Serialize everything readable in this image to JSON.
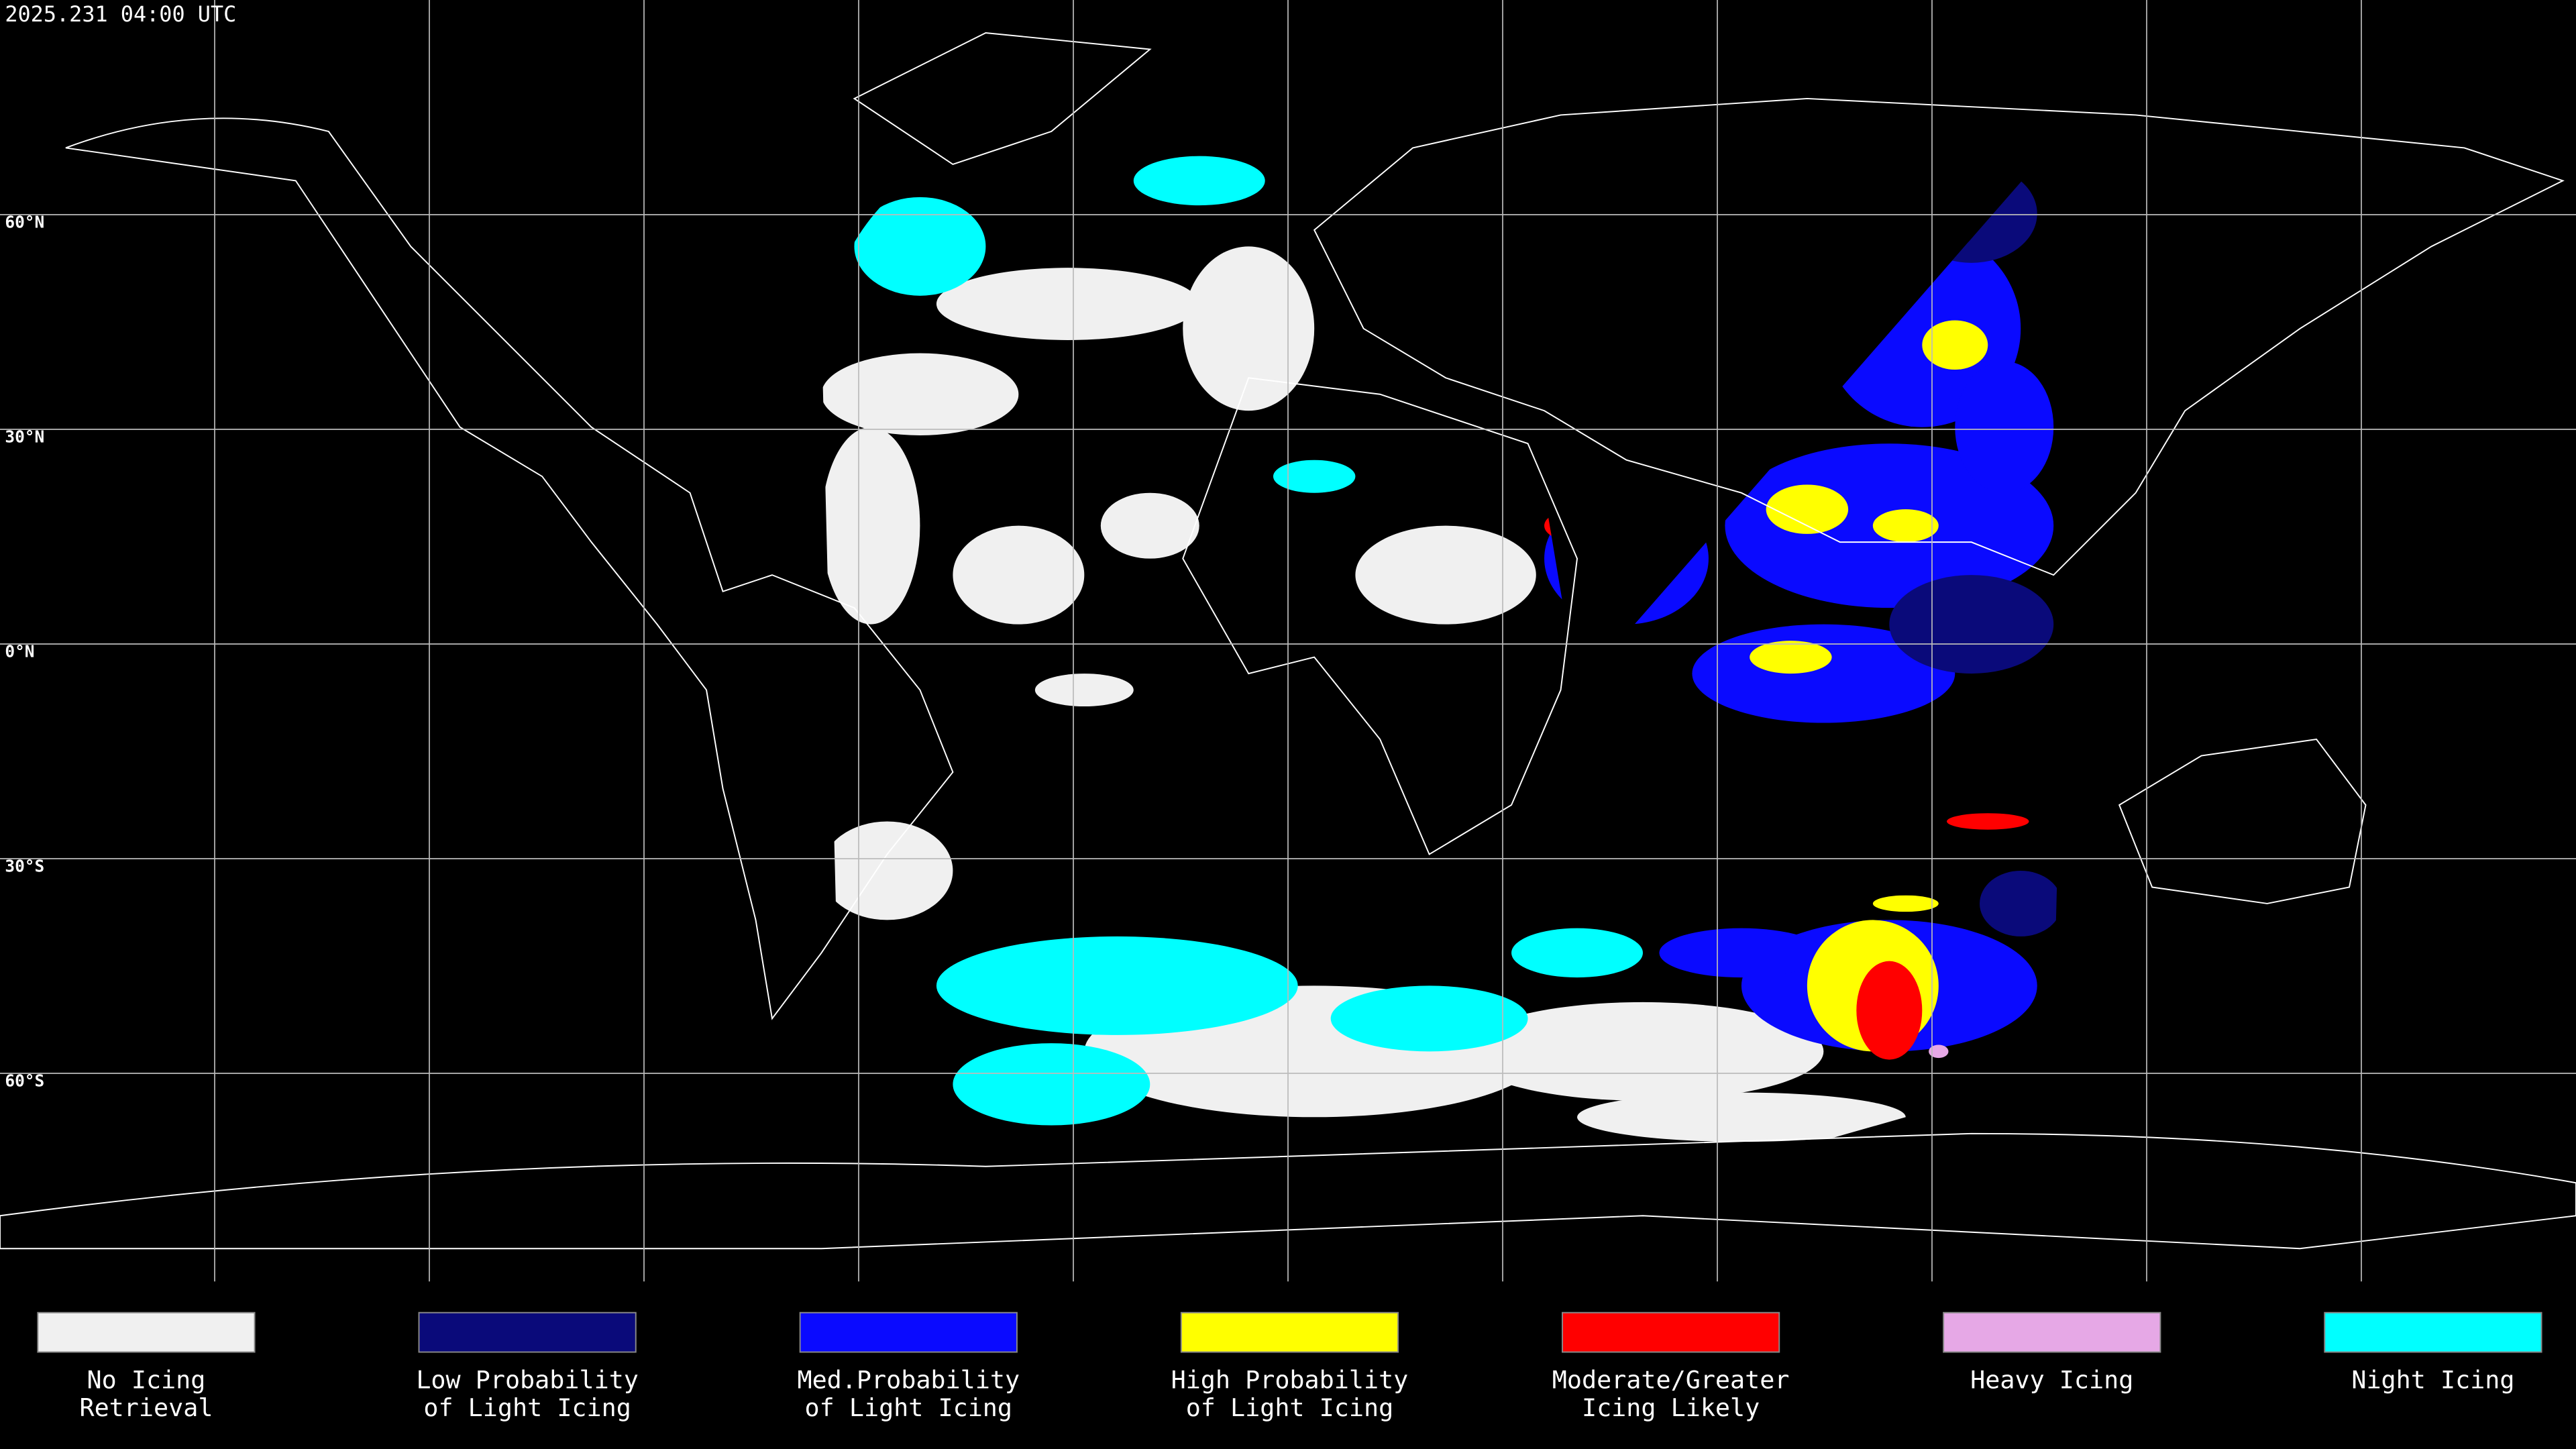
{
  "timestamp": "2025.231 04:00 UTC",
  "latitude_lines": [
    {
      "value": 60,
      "label": "60°N"
    },
    {
      "value": 30,
      "label": "30°N"
    },
    {
      "value": 0,
      "label": "0°N"
    },
    {
      "value": -30,
      "label": "30°S"
    },
    {
      "value": -60,
      "label": "60°S"
    }
  ],
  "legend": [
    {
      "color": "#f0f0f0",
      "lines": [
        "No Icing",
        "Retrieval"
      ]
    },
    {
      "color": "#0a0a7a",
      "lines": [
        "Low Probability",
        "of Light Icing"
      ]
    },
    {
      "color": "#0a0aff",
      "lines": [
        "Med.Probability",
        "of Light Icing"
      ]
    },
    {
      "color": "#ffff00",
      "lines": [
        "High Probability",
        "of Light Icing"
      ]
    },
    {
      "color": "#ff0000",
      "lines": [
        "Moderate/Greater",
        "Icing Likely"
      ]
    },
    {
      "color": "#e6a8e6",
      "lines": [
        "Heavy Icing"
      ]
    },
    {
      "color": "#00ffff",
      "lines": [
        "Night Icing"
      ]
    }
  ]
}
